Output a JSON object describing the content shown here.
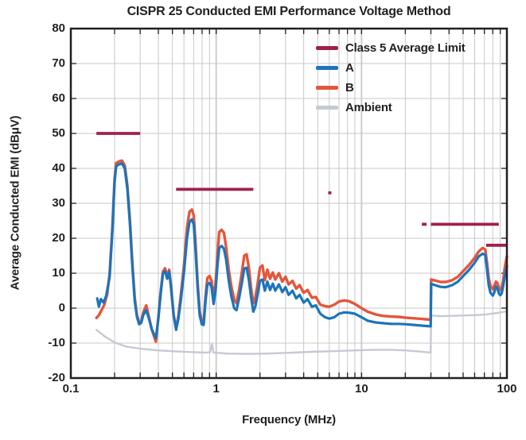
{
  "chart_data": {
    "type": "line",
    "title": "CISPR 25 Conducted EMI Performance Voltage Method",
    "xlabel": "Frequency (MHz)",
    "ylabel": "Average Conducted EMI (dBμV)",
    "xscale": "log",
    "xlim": [
      0.1,
      100
    ],
    "ylim": [
      -20,
      80
    ],
    "grid": true,
    "legend_position": "top-right",
    "x_axis": {
      "ticks": [
        {
          "value": 0.1,
          "label": "0.1"
        },
        {
          "value": 1,
          "label": "1"
        },
        {
          "value": 10,
          "label": "10"
        },
        {
          "value": 100,
          "label": "100"
        }
      ]
    },
    "y_axis": {
      "tick_start": -20,
      "tick_step": 10,
      "tick_labels": [
        "-20",
        "-10",
        "0",
        "10",
        "20",
        "30",
        "40",
        "50",
        "60",
        "70",
        "80"
      ]
    },
    "colors": {
      "limit": "#a2204a",
      "series_a": "#1b74bc",
      "series_b": "#e2573c",
      "ambient": "#c5c9d2",
      "grid": "#c9c9c9",
      "axis": "#231f20",
      "background": "#ffffff"
    },
    "legend": [
      {
        "label": "Class 5 Average Limit",
        "color_key": "limit",
        "key": "limit"
      },
      {
        "label": "A",
        "color_key": "series_a",
        "key": "a"
      },
      {
        "label": "B",
        "color_key": "series_b",
        "key": "b"
      },
      {
        "label": "Ambient",
        "color_key": "ambient",
        "key": "ambient"
      }
    ],
    "limit_segments": [
      {
        "from": 0.15,
        "to": 0.3,
        "level": 50
      },
      {
        "from": 0.53,
        "to": 1.8,
        "level": 34
      },
      {
        "from": 5.9,
        "to": 6.2,
        "level": 33
      },
      {
        "from": 26,
        "to": 28,
        "level": 24
      },
      {
        "from": 30,
        "to": 88,
        "level": 24
      },
      {
        "from": 72,
        "to": 100,
        "level": 18
      }
    ],
    "series": [
      {
        "name": "A",
        "color_key": "series_a",
        "width": 3.2,
        "points": [
          [
            0.152,
            2.8
          ],
          [
            0.156,
            0.4
          ],
          [
            0.161,
            2.6
          ],
          [
            0.168,
            1.6
          ],
          [
            0.175,
            3.5
          ],
          [
            0.185,
            9
          ],
          [
            0.193,
            22
          ],
          [
            0.2,
            36
          ],
          [
            0.205,
            40.5
          ],
          [
            0.215,
            41.2
          ],
          [
            0.225,
            41.4
          ],
          [
            0.235,
            40
          ],
          [
            0.245,
            34
          ],
          [
            0.255,
            24
          ],
          [
            0.265,
            12
          ],
          [
            0.275,
            2
          ],
          [
            0.285,
            -2.5
          ],
          [
            0.295,
            -4.6
          ],
          [
            0.305,
            -4.2
          ],
          [
            0.315,
            -2
          ],
          [
            0.33,
            -0.6
          ],
          [
            0.345,
            -3
          ],
          [
            0.36,
            -6
          ],
          [
            0.385,
            -8.6
          ],
          [
            0.4,
            -3
          ],
          [
            0.415,
            4
          ],
          [
            0.43,
            9.8
          ],
          [
            0.445,
            10.6
          ],
          [
            0.46,
            8.4
          ],
          [
            0.475,
            10.4
          ],
          [
            0.49,
            6
          ],
          [
            0.51,
            -2
          ],
          [
            0.53,
            -6.2
          ],
          [
            0.55,
            -3
          ],
          [
            0.57,
            2
          ],
          [
            0.6,
            10
          ],
          [
            0.63,
            20
          ],
          [
            0.655,
            24.6
          ],
          [
            0.68,
            25.4
          ],
          [
            0.7,
            24
          ],
          [
            0.72,
            17
          ],
          [
            0.745,
            6
          ],
          [
            0.77,
            -2
          ],
          [
            0.795,
            -4.6
          ],
          [
            0.82,
            -4.8
          ],
          [
            0.845,
            2
          ],
          [
            0.87,
            6.8
          ],
          [
            0.9,
            7.2
          ],
          [
            0.93,
            6
          ],
          [
            0.96,
            1.2
          ],
          [
            0.99,
            5
          ],
          [
            1.02,
            12
          ],
          [
            1.05,
            17.3
          ],
          [
            1.09,
            17.8
          ],
          [
            1.13,
            17
          ],
          [
            1.17,
            14
          ],
          [
            1.22,
            8
          ],
          [
            1.27,
            3.5
          ],
          [
            1.33,
            0
          ],
          [
            1.38,
            -0.6
          ],
          [
            1.44,
            3
          ],
          [
            1.5,
            7
          ],
          [
            1.56,
            11.3
          ],
          [
            1.62,
            11.6
          ],
          [
            1.68,
            8
          ],
          [
            1.74,
            3
          ],
          [
            1.8,
            -1
          ],
          [
            1.86,
            0.5
          ],
          [
            1.93,
            4
          ],
          [
            2.0,
            7.8
          ],
          [
            2.08,
            8.2
          ],
          [
            2.16,
            5
          ],
          [
            2.25,
            7.6
          ],
          [
            2.35,
            5.2
          ],
          [
            2.45,
            7
          ],
          [
            2.55,
            5
          ],
          [
            2.7,
            6.8
          ],
          [
            2.85,
            4.6
          ],
          [
            3.0,
            6
          ],
          [
            3.15,
            3.8
          ],
          [
            3.35,
            5
          ],
          [
            3.55,
            2.8
          ],
          [
            3.75,
            3.8
          ],
          [
            4.0,
            1.6
          ],
          [
            4.25,
            2.6
          ],
          [
            4.55,
            0.4
          ],
          [
            4.85,
            0.8
          ],
          [
            5.2,
            -1.6
          ],
          [
            5.6,
            -2.6
          ],
          [
            6.0,
            -3
          ],
          [
            6.5,
            -2.6
          ],
          [
            7.0,
            -1.6
          ],
          [
            7.6,
            -1.2
          ],
          [
            8.2,
            -1.3
          ],
          [
            9.0,
            -1.6
          ],
          [
            10,
            -2.6
          ],
          [
            11,
            -3.6
          ],
          [
            12.5,
            -4.1
          ],
          [
            14,
            -4.3
          ],
          [
            16,
            -4.5
          ],
          [
            18,
            -4.5
          ],
          [
            20,
            -4.6
          ],
          [
            23,
            -4.8
          ],
          [
            26,
            -5
          ],
          [
            29.9,
            -5.2
          ],
          [
            30.1,
            7
          ],
          [
            32,
            6.6
          ],
          [
            35,
            6.1
          ],
          [
            38,
            6.0
          ],
          [
            42,
            6.6
          ],
          [
            46,
            7.6
          ],
          [
            50,
            9.2
          ],
          [
            55,
            11
          ],
          [
            60,
            13
          ],
          [
            64,
            14.8
          ],
          [
            68,
            15.6
          ],
          [
            71,
            15.2
          ],
          [
            73,
            11
          ],
          [
            75,
            6.5
          ],
          [
            77,
            4.4
          ],
          [
            80,
            3.6
          ],
          [
            82,
            4.6
          ],
          [
            84,
            6.2
          ],
          [
            86,
            5.8
          ],
          [
            88,
            4.2
          ],
          [
            90,
            3.7
          ],
          [
            92,
            4.2
          ],
          [
            94,
            6
          ],
          [
            97,
            9.5
          ],
          [
            100,
            12
          ]
        ]
      },
      {
        "name": "B",
        "color_key": "series_b",
        "width": 3.4,
        "points": [
          [
            0.15,
            -2.8
          ],
          [
            0.156,
            -2
          ],
          [
            0.163,
            -0.5
          ],
          [
            0.17,
            1
          ],
          [
            0.178,
            4
          ],
          [
            0.185,
            10
          ],
          [
            0.193,
            23
          ],
          [
            0.2,
            37
          ],
          [
            0.205,
            41.5
          ],
          [
            0.215,
            42
          ],
          [
            0.225,
            42.2
          ],
          [
            0.235,
            40.8
          ],
          [
            0.245,
            35
          ],
          [
            0.255,
            25
          ],
          [
            0.265,
            13
          ],
          [
            0.275,
            3
          ],
          [
            0.285,
            -2
          ],
          [
            0.295,
            -4.2
          ],
          [
            0.305,
            -3.8
          ],
          [
            0.315,
            -1.2
          ],
          [
            0.33,
            0.8
          ],
          [
            0.345,
            -2.6
          ],
          [
            0.36,
            -6
          ],
          [
            0.385,
            -9.6
          ],
          [
            0.4,
            -2.6
          ],
          [
            0.415,
            4.6
          ],
          [
            0.43,
            10.4
          ],
          [
            0.445,
            11.4
          ],
          [
            0.46,
            9
          ],
          [
            0.475,
            11
          ],
          [
            0.49,
            5.4
          ],
          [
            0.51,
            -2
          ],
          [
            0.53,
            -5.8
          ],
          [
            0.55,
            -2.2
          ],
          [
            0.57,
            3.4
          ],
          [
            0.6,
            12
          ],
          [
            0.63,
            23
          ],
          [
            0.655,
            27.6
          ],
          [
            0.68,
            28.2
          ],
          [
            0.7,
            26.6
          ],
          [
            0.72,
            19
          ],
          [
            0.745,
            7.4
          ],
          [
            0.77,
            -1
          ],
          [
            0.795,
            -3.8
          ],
          [
            0.82,
            -4.2
          ],
          [
            0.845,
            3.4
          ],
          [
            0.87,
            8.6
          ],
          [
            0.9,
            9.2
          ],
          [
            0.93,
            7.8
          ],
          [
            0.96,
            3
          ],
          [
            0.99,
            7
          ],
          [
            1.02,
            15
          ],
          [
            1.05,
            21.8
          ],
          [
            1.09,
            22.4
          ],
          [
            1.13,
            21.6
          ],
          [
            1.17,
            17.6
          ],
          [
            1.22,
            11
          ],
          [
            1.27,
            6.4
          ],
          [
            1.33,
            2.4
          ],
          [
            1.38,
            1.4
          ],
          [
            1.44,
            5.4
          ],
          [
            1.5,
            10
          ],
          [
            1.56,
            15
          ],
          [
            1.62,
            15.4
          ],
          [
            1.68,
            11.4
          ],
          [
            1.74,
            5.6
          ],
          [
            1.8,
            1.4
          ],
          [
            1.86,
            3
          ],
          [
            1.93,
            7
          ],
          [
            2.0,
            11.6
          ],
          [
            2.08,
            12.2
          ],
          [
            2.16,
            8
          ],
          [
            2.25,
            11
          ],
          [
            2.35,
            8.4
          ],
          [
            2.45,
            10.2
          ],
          [
            2.55,
            8.2
          ],
          [
            2.7,
            10
          ],
          [
            2.85,
            7.6
          ],
          [
            3.0,
            9
          ],
          [
            3.15,
            6.8
          ],
          [
            3.35,
            7.8
          ],
          [
            3.55,
            5.6
          ],
          [
            3.75,
            6.6
          ],
          [
            4.0,
            4.4
          ],
          [
            4.25,
            5.2
          ],
          [
            4.55,
            3
          ],
          [
            4.85,
            3.2
          ],
          [
            5.2,
            1
          ],
          [
            5.6,
            0.6
          ],
          [
            6.0,
            0.4
          ],
          [
            6.5,
            1
          ],
          [
            7.0,
            1.9
          ],
          [
            7.6,
            2.2
          ],
          [
            8.2,
            2
          ],
          [
            9.0,
            1.2
          ],
          [
            10,
            0
          ],
          [
            11,
            -1
          ],
          [
            12.5,
            -1.8
          ],
          [
            14,
            -2.2
          ],
          [
            16,
            -2.4
          ],
          [
            18,
            -2.5
          ],
          [
            20,
            -2.7
          ],
          [
            23,
            -2.9
          ],
          [
            26,
            -3.1
          ],
          [
            29.9,
            -3.3
          ],
          [
            30.1,
            8.2
          ],
          [
            32,
            7.9
          ],
          [
            35,
            7.5
          ],
          [
            38,
            7.5
          ],
          [
            42,
            8
          ],
          [
            46,
            9
          ],
          [
            50,
            10.6
          ],
          [
            55,
            12.4
          ],
          [
            60,
            14.4
          ],
          [
            64,
            16.2
          ],
          [
            68,
            17.2
          ],
          [
            71,
            16.8
          ],
          [
            73,
            13
          ],
          [
            75,
            8.5
          ],
          [
            77,
            6.4
          ],
          [
            80,
            5.4
          ],
          [
            82,
            6.4
          ],
          [
            84,
            7.6
          ],
          [
            86,
            7.2
          ],
          [
            88,
            5.8
          ],
          [
            90,
            5.2
          ],
          [
            92,
            5.8
          ],
          [
            94,
            7.6
          ],
          [
            97,
            12
          ],
          [
            100,
            14.8
          ]
        ]
      },
      {
        "name": "Ambient",
        "color_key": "ambient",
        "width": 2.4,
        "points": [
          [
            0.15,
            -6.2
          ],
          [
            0.17,
            -8
          ],
          [
            0.2,
            -9.8
          ],
          [
            0.24,
            -11
          ],
          [
            0.3,
            -11.6
          ],
          [
            0.4,
            -12.1
          ],
          [
            0.55,
            -12.4
          ],
          [
            0.7,
            -12.6
          ],
          [
            0.85,
            -12.7
          ],
          [
            0.91,
            -12.6
          ],
          [
            0.935,
            -10.2
          ],
          [
            0.96,
            -12.7
          ],
          [
            1.2,
            -13
          ],
          [
            1.6,
            -13.1
          ],
          [
            2.2,
            -13
          ],
          [
            3.0,
            -12.8
          ],
          [
            4.5,
            -12.5
          ],
          [
            6.5,
            -12.3
          ],
          [
            9,
            -12.1
          ],
          [
            12,
            -11.9
          ],
          [
            16,
            -11.9
          ],
          [
            20,
            -12.1
          ],
          [
            25,
            -12.4
          ],
          [
            29.9,
            -12.7
          ],
          [
            30.1,
            -2.1
          ],
          [
            35,
            -2.3
          ],
          [
            42,
            -2.2
          ],
          [
            50,
            -2.1
          ],
          [
            60,
            -2
          ],
          [
            72,
            -1.8
          ],
          [
            85,
            -1.4
          ],
          [
            100,
            -0.9
          ]
        ]
      }
    ]
  }
}
